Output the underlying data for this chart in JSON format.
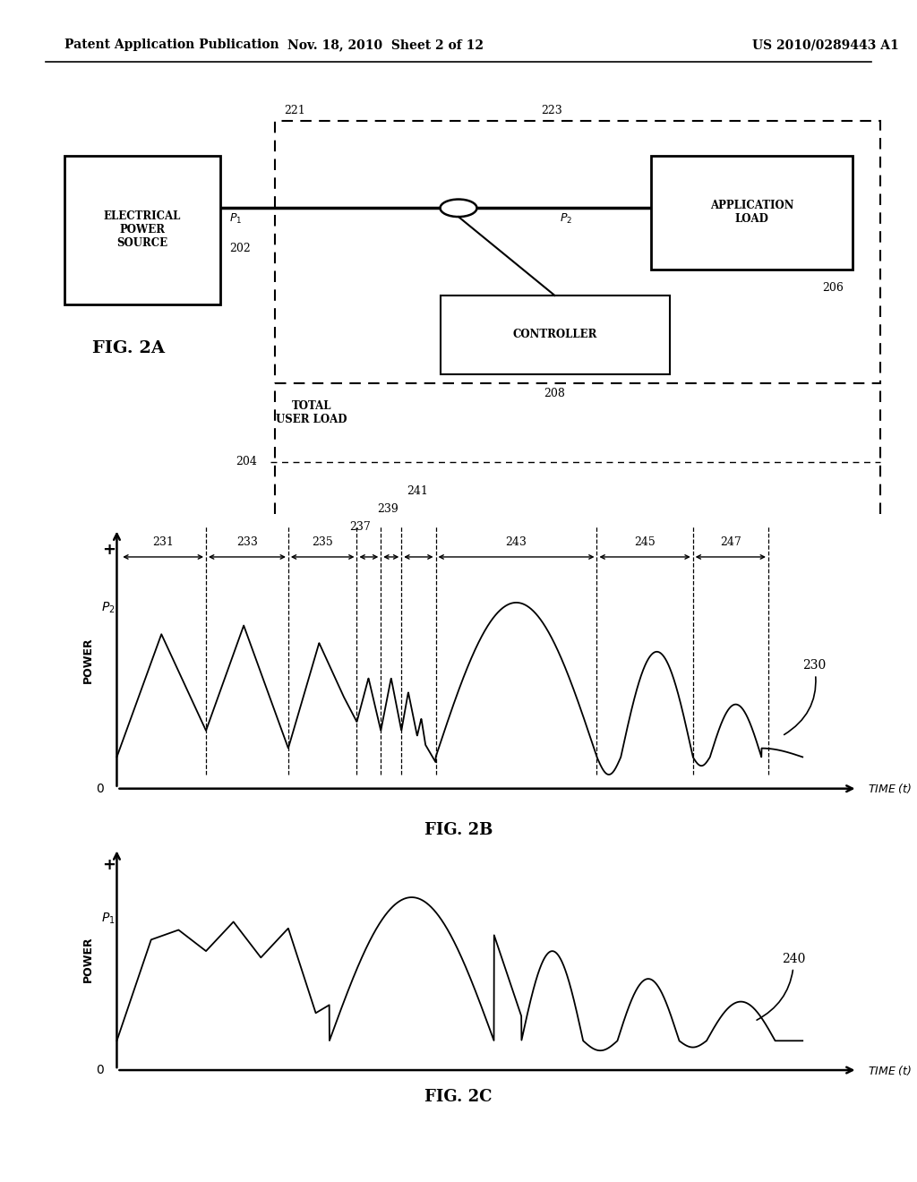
{
  "header_left": "Patent Application Publication",
  "header_mid": "Nov. 18, 2010  Sheet 2 of 12",
  "header_right": "US 2010/0289443 A1",
  "bg_color": "#ffffff"
}
